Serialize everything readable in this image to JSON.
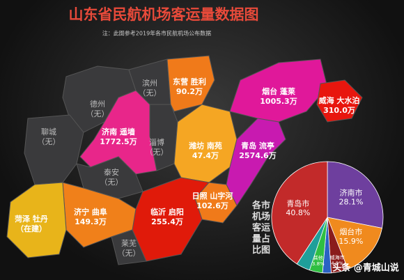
{
  "title": "山东省民航机场客运量数据图",
  "note": "注：此图参考2019年各市民航机场公布数据",
  "regions": [
    {
      "lines": [
        "德州",
        "（无）"
      ]
    },
    {
      "lines": [
        "聊城",
        "（无）"
      ]
    },
    {
      "lines": [
        "滨州",
        "（无）"
      ]
    },
    {
      "lines": [
        "东营 胜利",
        "90.2万"
      ]
    },
    {
      "lines": [
        "济南 遥墙",
        "1772.5万"
      ]
    },
    {
      "lines": [
        "淄博",
        "（无）"
      ]
    },
    {
      "lines": [
        "泰安",
        "（无）"
      ]
    },
    {
      "lines": [
        "潍坊 南苑",
        "47.4万"
      ]
    },
    {
      "lines": [
        "烟台 蓬莱",
        "1005.3万"
      ]
    },
    {
      "lines": [
        "威海 大水泊",
        "310.0万"
      ]
    },
    {
      "lines": [
        "青岛 流亭",
        "2574.6万"
      ]
    },
    {
      "lines": [
        "日照 山字河",
        "102.6万"
      ]
    },
    {
      "lines": [
        "临沂 启阳",
        "255.4万"
      ]
    },
    {
      "lines": [
        "济宁 曲阜",
        "149.3万"
      ]
    },
    {
      "lines": [
        "菏泽 牡丹",
        "（在建）"
      ]
    },
    {
      "lines": [
        "莱芜",
        "（无）"
      ]
    }
  ],
  "watermark": "头条 @青城山说",
  "chart_data": {
    "type": "pie",
    "title": "各市机场客运量占比图",
    "categories": [
      "济南市",
      "烟台市",
      "威海市",
      null,
      "其他",
      null,
      "青岛市"
    ],
    "values": [
      28.1,
      15.9,
      4.9,
      2.5,
      3.8,
      4.0,
      40.8
    ],
    "value_labels": [
      "28.1%",
      "15.9%",
      "4.9%",
      null,
      "3.8%",
      null,
      "40.8%"
    ],
    "colors": [
      "#6e3f9e",
      "#f08a1e",
      "#8a1c1c",
      "#2a62c4",
      "#2fbf42",
      "#1f9f9a",
      "#c22a2a"
    ]
  }
}
